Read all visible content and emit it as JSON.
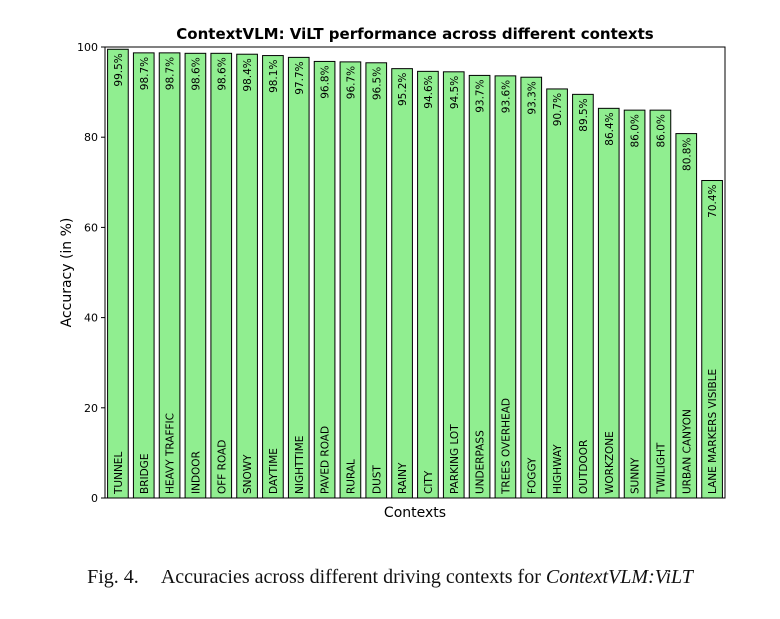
{
  "chart_data": {
    "type": "bar",
    "title": "ContextVLM: ViLT performance across different contexts",
    "xlabel": "Contexts",
    "ylabel": "Accuracy (in %)",
    "ylim": [
      0,
      100
    ],
    "yticks": [
      0,
      20,
      40,
      60,
      80,
      100
    ],
    "bar_color": "#90ee90",
    "bar_edge_color": "#000000",
    "categories": [
      "TUNNEL",
      "BRIDGE",
      "HEAVY TRAFFIC",
      "INDOOR",
      "OFF ROAD",
      "SNOWY",
      "DAYTIME",
      "NIGHTTIME",
      "PAVED ROAD",
      "RURAL",
      "DUST",
      "RAINY",
      "CITY",
      "PARKING LOT",
      "UNDERPASS",
      "TREES OVERHEAD",
      "FOGGY",
      "HIGHWAY",
      "OUTDOOR",
      "WORKZONE",
      "SUNNY",
      "TWILIGHT",
      "URBAN CANYON",
      "LANE MARKERS VISIBLE"
    ],
    "values": [
      99.5,
      98.7,
      98.7,
      98.6,
      98.6,
      98.4,
      98.1,
      97.7,
      96.8,
      96.7,
      96.5,
      95.2,
      94.6,
      94.5,
      93.7,
      93.6,
      93.3,
      90.7,
      89.5,
      86.4,
      86.0,
      86.0,
      80.8,
      70.4
    ],
    "value_labels": [
      "99.5%",
      "98.7%",
      "98.7%",
      "98.6%",
      "98.6%",
      "98.4%",
      "98.1%",
      "97.7%",
      "96.8%",
      "96.7%",
      "96.5%",
      "95.2%",
      "94.6%",
      "94.5%",
      "93.7%",
      "93.6%",
      "93.3%",
      "90.7%",
      "89.5%",
      "86.4%",
      "86.0%",
      "86.0%",
      "80.8%",
      "70.4%"
    ],
    "grid": false,
    "legend": "none"
  },
  "caption": {
    "figure_number": "Fig. 4.",
    "text": "Accuracies across different driving contexts for",
    "subject": "ContextVLM:ViLT"
  }
}
